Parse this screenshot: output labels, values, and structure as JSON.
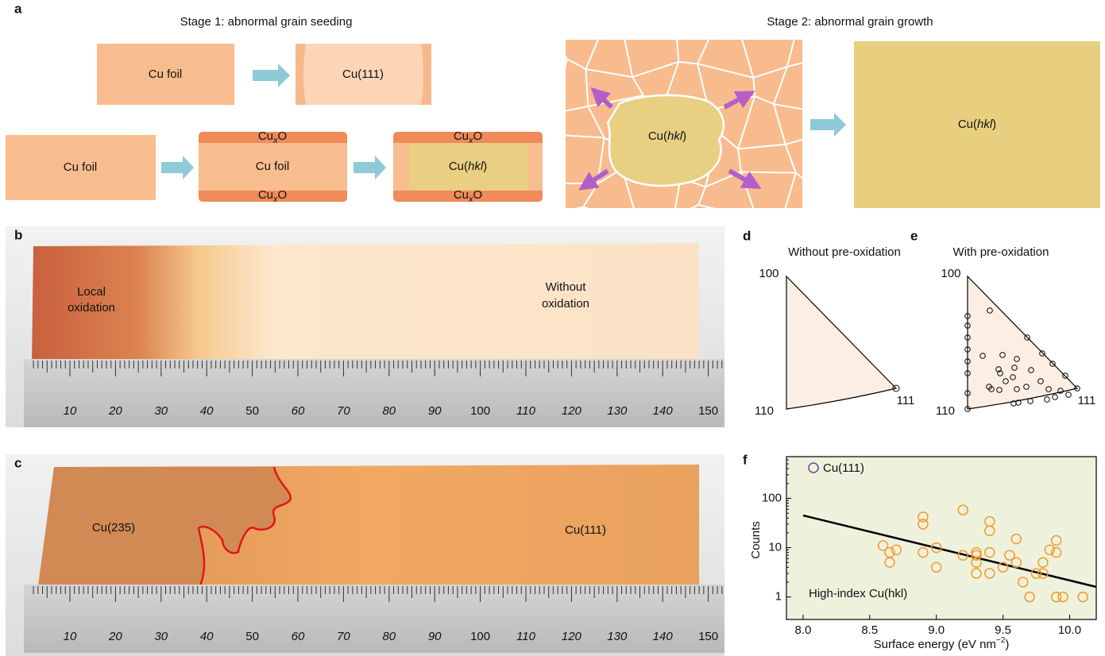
{
  "panel_a": {
    "label": "a",
    "stage1_title": "Stage 1: abnormal grain seeding",
    "stage2_title": "Stage 2: abnormal grain growth",
    "cu_foil_top": "Cu foil",
    "cu111": "Cu(111)",
    "cu_foil_bottom": "Cu foil",
    "cu_foil_oxidized": "Cu foil",
    "oxide": {
      "base": "Cu",
      "sub": "x",
      "tail": "O"
    },
    "hkl": {
      "base": "Cu(",
      "italic": "hkl",
      "tail": ")"
    }
  },
  "panel_b": {
    "label": "b",
    "left": [
      "Local",
      "oxidation"
    ],
    "right": [
      "Without",
      "oxidation"
    ],
    "ruler": [
      10,
      20,
      30,
      40,
      50,
      60,
      70,
      80,
      90,
      100,
      110,
      120,
      130,
      140,
      150
    ]
  },
  "panel_c": {
    "label": "c",
    "left": "Cu(235)",
    "right": "Cu(111)"
  },
  "panel_d": {
    "label": "d",
    "title": "Without pre-oxidation",
    "corners": [
      "100",
      "110",
      "111"
    ]
  },
  "panel_e": {
    "label": "e",
    "title": "With pre-oxidation",
    "corners": [
      "100",
      "110",
      "111"
    ]
  },
  "chart_data": {
    "type": "scatter",
    "label": "f",
    "ylabel": "Counts",
    "xlabel": {
      "text": "Surface energy (eV nm",
      "sup": "−2",
      "tail": ")"
    },
    "xlim": [
      7.875,
      10.2
    ],
    "ylim": [
      0.35,
      700
    ],
    "yscale": "log",
    "xticks": [
      {
        "value": 8,
        "label": "8.0"
      },
      8.5,
      {
        "value": 9,
        "label": "9.0"
      },
      9.5,
      {
        "value": 10,
        "label": "10.0"
      }
    ],
    "yticks": [
      1,
      10,
      100
    ],
    "legend_marker": {
      "label": "Cu(111)",
      "color": "#7d3c98"
    },
    "series": [
      {
        "name": "High-index Cu(hkl)",
        "color": "#f39a2e",
        "x": [
          8.6,
          8.65,
          8.65,
          8.7,
          8.9,
          8.9,
          8.9,
          9.0,
          9.0,
          9.2,
          9.2,
          9.3,
          9.3,
          9.3,
          9.3,
          9.4,
          9.4,
          9.4,
          9.4,
          9.5,
          9.55,
          9.6,
          9.6,
          9.65,
          9.75,
          9.7,
          9.8,
          9.8,
          9.85,
          9.9,
          9.9,
          9.9,
          9.95,
          10.1
        ],
        "values": [
          11,
          5,
          8,
          9,
          42,
          30,
          8,
          10,
          4,
          58,
          7,
          8,
          7,
          5,
          3,
          34,
          22,
          8,
          3,
          4,
          7,
          15,
          5,
          2,
          3,
          1,
          5,
          3,
          9,
          14,
          8,
          1,
          1,
          1
        ]
      }
    ],
    "fit_line": {
      "color": "#000000",
      "x": [
        8.0,
        10.2
      ],
      "values": [
        45,
        1.6
      ]
    }
  }
}
